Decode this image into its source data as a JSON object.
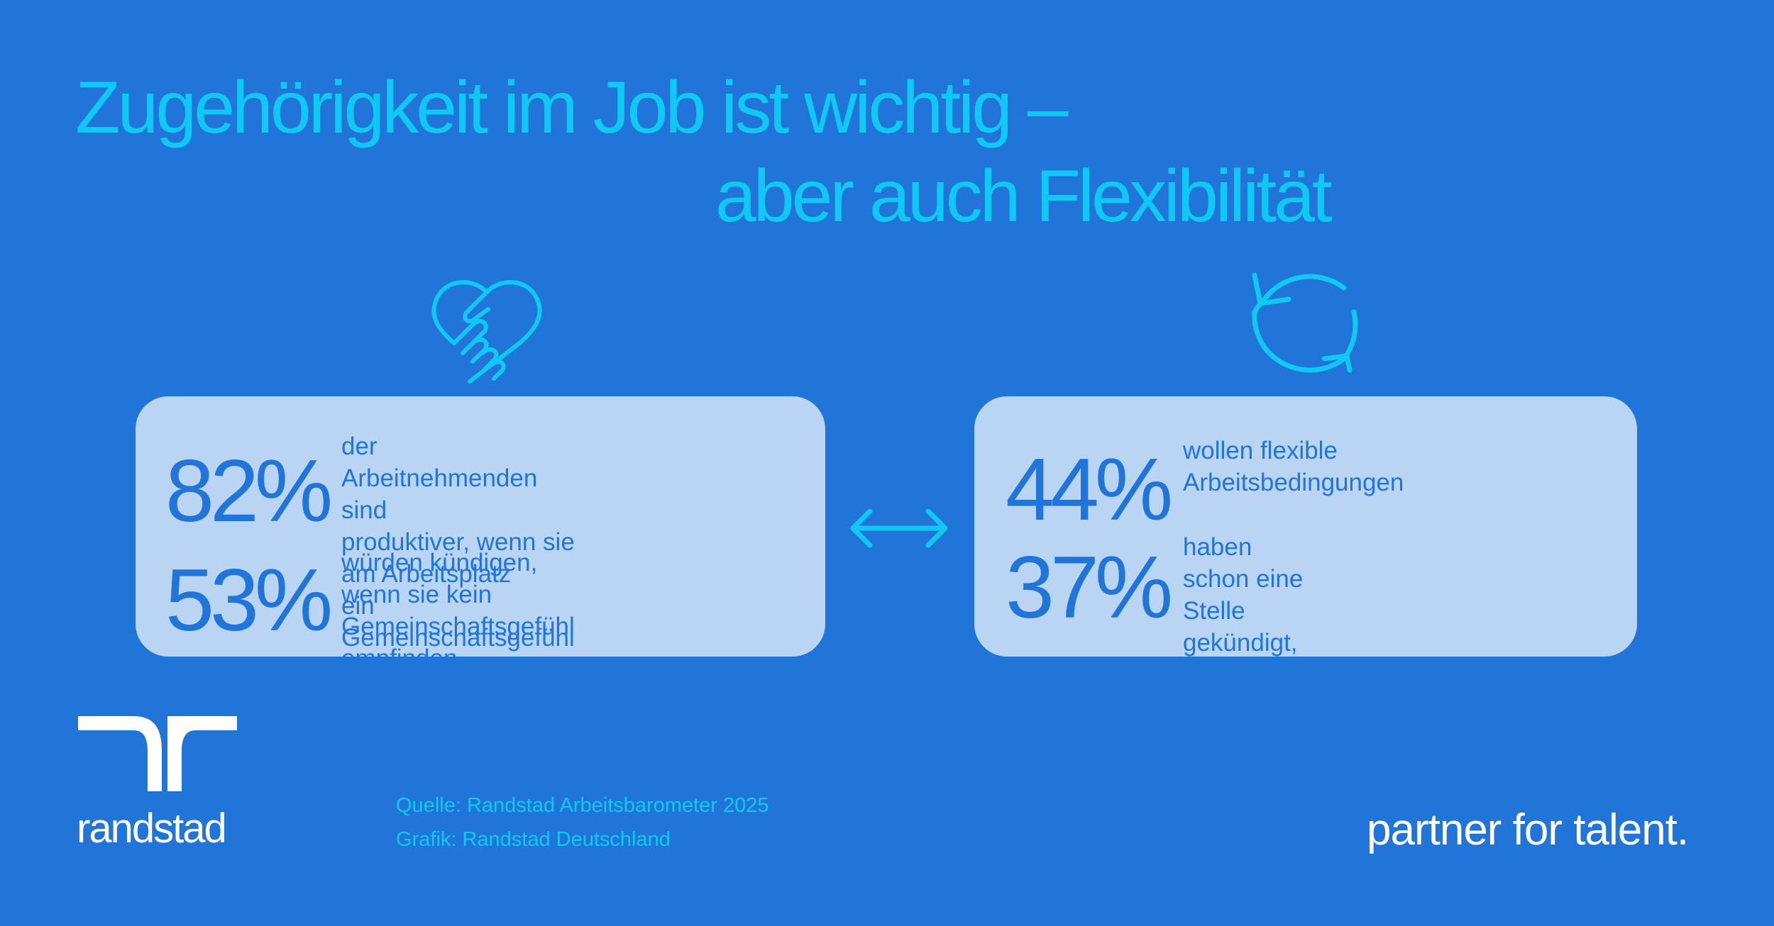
{
  "header": {
    "title_line1": "Zugehörigkeit im Job ist wichtig –",
    "title_line2": "aber auch Flexibilität"
  },
  "icons": {
    "left": "heart-handshake-icon",
    "right": "refresh-cycle-icon",
    "middle": "double-arrow-icon"
  },
  "cards": [
    {
      "stats": [
        {
          "percent": "82%",
          "text": "der Arbeitnehmenden sind\nproduktiver, wenn sie am Arbeitsplatz\nein Gemeinschaftsgefühl empfinden"
        },
        {
          "percent": "53%",
          "text": "würden kündigen, wenn sie kein\nGemeinschaftsgefühl empfinden"
        }
      ]
    },
    {
      "stats": [
        {
          "percent": "44%",
          "text": "wollen flexible\nArbeitsbedingungen"
        },
        {
          "percent": "37%",
          "text": "haben schon eine Stelle gekündigt,\nweil sie mit dem Privatleben\nnicht vereinbar war"
        }
      ]
    }
  ],
  "footer": {
    "logo_text": "randstad",
    "source_line1": "Quelle: Randstad Arbeitsbarometer 2025",
    "source_line2": "Grafik: Randstad Deutschland",
    "tagline": "partner for talent."
  },
  "colors": {
    "background": "#2175d9",
    "accent": "#0fc8f5",
    "card": "#b9d5f3",
    "white": "#ffffff"
  }
}
